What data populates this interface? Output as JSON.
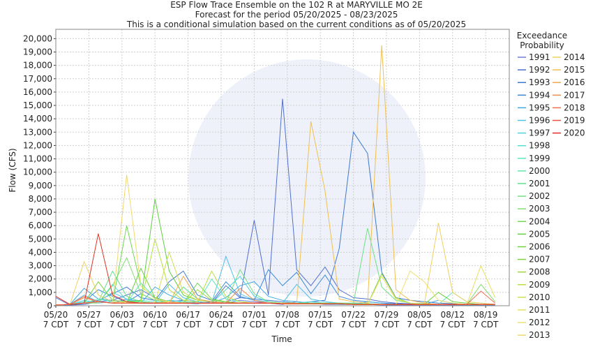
{
  "chart_data": {
    "type": "line",
    "title": "ESP Flow Trace Ensemble on the 102 R at MARYVILLE MO 2E",
    "subtitle": "Forecast for the period 05/20/2025 - 08/23/2025",
    "note": "This is a conditional simulation based on the current conditions as of 05/20/2025",
    "x_label": "Time",
    "y_label": "Flow (CFS)",
    "legend_title": "Exceedance Probability",
    "grid": true,
    "x": [
      "05/20",
      "05/23",
      "05/26",
      "05/29",
      "06/01",
      "06/04",
      "06/07",
      "06/10",
      "06/13",
      "06/16",
      "06/19",
      "06/22",
      "06/25",
      "06/28",
      "07/01",
      "07/04",
      "07/07",
      "07/10",
      "07/13",
      "07/16",
      "07/19",
      "07/22",
      "07/25",
      "07/28",
      "07/31",
      "08/03",
      "08/06",
      "08/09",
      "08/12",
      "08/15",
      "08/18",
      "08/21"
    ],
    "xlim": [
      "05/20",
      "08/24"
    ],
    "xticks": [
      "05/20",
      "05/27",
      "06/03",
      "06/10",
      "06/17",
      "06/24",
      "07/01",
      "07/08",
      "07/15",
      "07/22",
      "07/29",
      "08/05",
      "08/12",
      "08/19"
    ],
    "xtick_sublabel": "7 CDT",
    "ylim": [
      0,
      20700
    ],
    "yticks": [
      0,
      {
        "value": 1000,
        "label": "1,000"
      },
      {
        "value": 2000,
        "label": "2,000"
      },
      {
        "value": 3000,
        "label": "3,000"
      },
      {
        "value": 4000,
        "label": "4,000"
      },
      {
        "value": 5000,
        "label": "5,000"
      },
      {
        "value": 6000,
        "label": "6,000"
      },
      {
        "value": 7000,
        "label": "7,000"
      },
      {
        "value": 8000,
        "label": "8,000"
      },
      {
        "value": 9000,
        "label": "9,000"
      },
      {
        "value": 10000,
        "label": "10,000"
      },
      {
        "value": 11000,
        "label": "11,000"
      },
      {
        "value": 12000,
        "label": "12,000"
      },
      {
        "value": 13000,
        "label": "13,000"
      },
      {
        "value": 14000,
        "label": "14,000"
      },
      {
        "value": 15000,
        "label": "15,000"
      },
      {
        "value": 16000,
        "label": "16,000"
      },
      {
        "value": 17000,
        "label": "17,000"
      },
      {
        "value": 18000,
        "label": "18,000"
      },
      {
        "value": 19000,
        "label": "19,000"
      },
      {
        "value": 20000,
        "label": "20,000"
      }
    ],
    "series": [
      {
        "name": "1991",
        "color": "#6a7fd8",
        "values": [
          600,
          50,
          100,
          300,
          200,
          500,
          300,
          200,
          400,
          300,
          200,
          300,
          200,
          400,
          300,
          200,
          100,
          300,
          200,
          100,
          100,
          100,
          100,
          50,
          50,
          50,
          50,
          50,
          50,
          50,
          50,
          50
        ]
      },
      {
        "name": "1992",
        "color": "#4f6fd0",
        "values": [
          50,
          50,
          100,
          300,
          400,
          800,
          1200,
          600,
          300,
          400,
          300,
          200,
          1500,
          600,
          6400,
          800,
          15500,
          2700,
          1500,
          2900,
          1200,
          600,
          500,
          300,
          200,
          150,
          100,
          100,
          100,
          80,
          80,
          80
        ]
      },
      {
        "name": "1993",
        "color": "#3c78d0",
        "values": [
          50,
          50,
          200,
          400,
          900,
          1400,
          600,
          400,
          1800,
          2600,
          800,
          400,
          300,
          600,
          500,
          400,
          300,
          200,
          300,
          400,
          4300,
          13000,
          11400,
          2500,
          600,
          400,
          300,
          200,
          150,
          100,
          100,
          100
        ]
      },
      {
        "name": "1994",
        "color": "#3a8ad8",
        "values": [
          50,
          50,
          300,
          1200,
          700,
          300,
          900,
          400,
          300,
          200,
          150,
          300,
          1800,
          700,
          400,
          2700,
          1500,
          2500,
          900,
          2300,
          700,
          400,
          300,
          200,
          150,
          100,
          100,
          80,
          80,
          60,
          60,
          50
        ]
      },
      {
        "name": "1995",
        "color": "#40a8e0",
        "values": [
          50,
          100,
          1300,
          500,
          400,
          300,
          200,
          1400,
          800,
          400,
          300,
          200,
          600,
          1500,
          1800,
          700,
          400,
          300,
          200,
          150,
          100,
          100,
          300,
          200,
          100,
          100,
          100,
          400,
          200,
          100,
          100,
          100
        ]
      },
      {
        "name": "1996",
        "color": "#50c0e8",
        "values": [
          50,
          100,
          800,
          300,
          1000,
          500,
          300,
          200,
          1600,
          600,
          300,
          200,
          3700,
          900,
          400,
          300,
          200,
          1600,
          500,
          300,
          200,
          200,
          150,
          100,
          100,
          100,
          100,
          100,
          100,
          100,
          100,
          100
        ]
      },
      {
        "name": "1997",
        "color": "#50d0e0",
        "values": [
          50,
          100,
          400,
          200,
          300,
          200,
          200,
          200,
          300,
          200,
          300,
          200,
          1200,
          2200,
          700,
          300,
          200,
          200,
          300,
          200,
          200,
          150,
          100,
          100,
          100,
          100,
          100,
          100,
          100,
          100,
          100,
          100
        ]
      },
      {
        "name": "1998",
        "color": "#50e0d0",
        "values": [
          50,
          100,
          300,
          200,
          1600,
          400,
          300,
          200,
          400,
          300,
          200,
          200,
          300,
          200,
          200,
          200,
          200,
          200,
          200,
          200,
          200,
          150,
          150,
          100,
          100,
          100,
          100,
          100,
          100,
          100,
          100,
          100
        ]
      },
      {
        "name": "1999",
        "color": "#60e8c0",
        "values": [
          50,
          100,
          200,
          500,
          300,
          200,
          400,
          300,
          200,
          300,
          200,
          2000,
          500,
          300,
          200,
          200,
          200,
          150,
          150,
          150,
          150,
          100,
          100,
          100,
          100,
          100,
          100,
          100,
          1000,
          300,
          200,
          100
        ]
      },
      {
        "name": "2000",
        "color": "#60e8a8",
        "values": [
          50,
          100,
          200,
          300,
          200,
          200,
          1700,
          600,
          300,
          200,
          200,
          200,
          200,
          200,
          200,
          200,
          150,
          150,
          150,
          150,
          150,
          100,
          100,
          100,
          100,
          100,
          100,
          100,
          100,
          100,
          100,
          100
        ]
      },
      {
        "name": "2001",
        "color": "#60e090",
        "values": [
          50,
          100,
          200,
          300,
          2600,
          700,
          300,
          200,
          300,
          1400,
          500,
          300,
          200,
          200,
          200,
          200,
          150,
          150,
          150,
          150,
          150,
          100,
          100,
          100,
          100,
          100,
          100,
          100,
          100,
          100,
          100,
          100
        ]
      },
      {
        "name": "2002",
        "color": "#70e080",
        "values": [
          50,
          100,
          200,
          300,
          200,
          200,
          300,
          200,
          200,
          200,
          200,
          200,
          200,
          2700,
          900,
          300,
          200,
          200,
          200,
          200,
          200,
          200,
          5800,
          1400,
          400,
          200,
          150,
          100,
          100,
          100,
          100,
          100
        ]
      },
      {
        "name": "2003",
        "color": "#80e070",
        "values": [
          50,
          100,
          200,
          200,
          1500,
          3600,
          900,
          400,
          300,
          200,
          200,
          200,
          200,
          200,
          200,
          200,
          200,
          200,
          200,
          200,
          150,
          150,
          150,
          100,
          100,
          100,
          100,
          100,
          100,
          100,
          1600,
          300
        ]
      },
      {
        "name": "2004",
        "color": "#70d850",
        "values": [
          50,
          100,
          200,
          300,
          200,
          6000,
          1500,
          500,
          300,
          200,
          1700,
          500,
          300,
          200,
          200,
          200,
          150,
          150,
          150,
          150,
          150,
          100,
          100,
          100,
          100,
          100,
          100,
          100,
          100,
          100,
          100,
          100
        ]
      },
      {
        "name": "2005",
        "color": "#60d040",
        "values": [
          50,
          100,
          200,
          300,
          200,
          300,
          400,
          8000,
          2600,
          800,
          400,
          300,
          200,
          200,
          200,
          200,
          150,
          150,
          150,
          150,
          150,
          100,
          100,
          100,
          100,
          100,
          100,
          100,
          100,
          100,
          100,
          100
        ]
      },
      {
        "name": "2006",
        "color": "#70d040",
        "values": [
          50,
          100,
          200,
          300,
          200,
          200,
          2800,
          600,
          300,
          200,
          200,
          200,
          200,
          200,
          200,
          200,
          150,
          150,
          150,
          150,
          150,
          100,
          100,
          100,
          100,
          100,
          100,
          1000,
          300,
          200,
          100,
          100
        ]
      },
      {
        "name": "2007",
        "color": "#80d040",
        "values": [
          50,
          100,
          200,
          1800,
          400,
          300,
          200,
          200,
          300,
          200,
          200,
          200,
          200,
          200,
          200,
          200,
          150,
          150,
          150,
          150,
          150,
          100,
          100,
          2400,
          600,
          200,
          100,
          100,
          100,
          100,
          100,
          100
        ]
      },
      {
        "name": "2008",
        "color": "#a0d840",
        "values": [
          50,
          100,
          200,
          300,
          200,
          300,
          200,
          200,
          300,
          200,
          1200,
          400,
          300,
          200,
          200,
          200,
          150,
          150,
          150,
          150,
          150,
          100,
          100,
          100,
          100,
          100,
          100,
          100,
          100,
          100,
          100,
          100
        ]
      },
      {
        "name": "2009",
        "color": "#b8e040",
        "values": [
          50,
          100,
          200,
          300,
          200,
          200,
          200,
          5000,
          1200,
          400,
          300,
          2600,
          700,
          300,
          200,
          200,
          150,
          150,
          150,
          150,
          150,
          100,
          100,
          100,
          100,
          100,
          100,
          100,
          100,
          100,
          100,
          100
        ]
      },
      {
        "name": "2010",
        "color": "#d0e050",
        "values": [
          50,
          100,
          200,
          300,
          200,
          200,
          200,
          200,
          4000,
          1000,
          400,
          300,
          200,
          200,
          200,
          200,
          150,
          150,
          150,
          150,
          150,
          100,
          100,
          100,
          100,
          100,
          100,
          100,
          100,
          100,
          100,
          100
        ]
      },
      {
        "name": "2011",
        "color": "#e8e060",
        "values": [
          50,
          100,
          200,
          300,
          200,
          300,
          200,
          200,
          300,
          200,
          200,
          200,
          200,
          200,
          200,
          200,
          150,
          150,
          150,
          150,
          150,
          100,
          100,
          2200,
          500,
          200,
          100,
          100,
          100,
          100,
          3000,
          600
        ]
      },
      {
        "name": "2012",
        "color": "#f0e070",
        "values": [
          50,
          100,
          200,
          300,
          200,
          200,
          200,
          200,
          200,
          200,
          200,
          200,
          200,
          200,
          200,
          200,
          150,
          150,
          150,
          150,
          150,
          100,
          100,
          100,
          100,
          2600,
          1800,
          400,
          200,
          100,
          100,
          100
        ]
      },
      {
        "name": "2013",
        "color": "#f0d870",
        "values": [
          50,
          100,
          200,
          300,
          200,
          9800,
          1500,
          500,
          300,
          200,
          200,
          200,
          200,
          200,
          200,
          200,
          150,
          150,
          150,
          150,
          150,
          100,
          100,
          100,
          100,
          100,
          100,
          100,
          100,
          100,
          100,
          100
        ]
      },
      {
        "name": "2014",
        "color": "#f0d060",
        "values": [
          50,
          100,
          3300,
          800,
          300,
          200,
          200,
          200,
          200,
          200,
          200,
          200,
          200,
          200,
          200,
          200,
          150,
          150,
          150,
          150,
          150,
          100,
          100,
          100,
          100,
          100,
          100,
          6200,
          1000,
          300,
          200,
          100
        ]
      },
      {
        "name": "2015",
        "color": "#f0c050",
        "values": [
          50,
          100,
          200,
          300,
          200,
          200,
          200,
          200,
          200,
          200,
          200,
          200,
          200,
          200,
          200,
          200,
          200,
          200,
          13800,
          8600,
          500,
          300,
          200,
          19500,
          1200,
          400,
          200,
          100,
          100,
          100,
          100,
          100
        ]
      },
      {
        "name": "2016",
        "color": "#f0a850",
        "values": [
          50,
          100,
          200,
          300,
          200,
          200,
          200,
          200,
          200,
          2200,
          500,
          300,
          200,
          200,
          200,
          200,
          150,
          150,
          150,
          150,
          150,
          100,
          100,
          100,
          100,
          100,
          100,
          100,
          100,
          100,
          100,
          100
        ]
      },
      {
        "name": "2017",
        "color": "#f09050",
        "values": [
          50,
          100,
          600,
          300,
          200,
          200,
          200,
          200,
          200,
          200,
          200,
          200,
          200,
          1300,
          400,
          200,
          150,
          150,
          150,
          150,
          150,
          100,
          100,
          100,
          100,
          100,
          100,
          100,
          100,
          100,
          100,
          100
        ]
      },
      {
        "name": "2018",
        "color": "#f07050",
        "values": [
          50,
          100,
          700,
          300,
          200,
          200,
          200,
          200,
          200,
          200,
          200,
          200,
          200,
          200,
          200,
          200,
          150,
          150,
          150,
          150,
          150,
          100,
          100,
          100,
          100,
          100,
          100,
          100,
          100,
          100,
          1100,
          200
        ]
      },
      {
        "name": "2019",
        "color": "#e85040",
        "values": [
          50,
          100,
          200,
          300,
          200,
          200,
          200,
          200,
          200,
          200,
          200,
          200,
          200,
          200,
          200,
          200,
          150,
          150,
          150,
          150,
          150,
          100,
          100,
          100,
          100,
          100,
          100,
          100,
          100,
          100,
          100,
          100
        ]
      },
      {
        "name": "2020",
        "color": "#e03020",
        "values": [
          700,
          100,
          200,
          5400,
          800,
          300,
          200,
          200,
          200,
          200,
          200,
          200,
          200,
          200,
          200,
          200,
          150,
          150,
          150,
          150,
          150,
          100,
          100,
          100,
          100,
          100,
          100,
          100,
          100,
          100,
          100,
          100
        ]
      }
    ]
  }
}
